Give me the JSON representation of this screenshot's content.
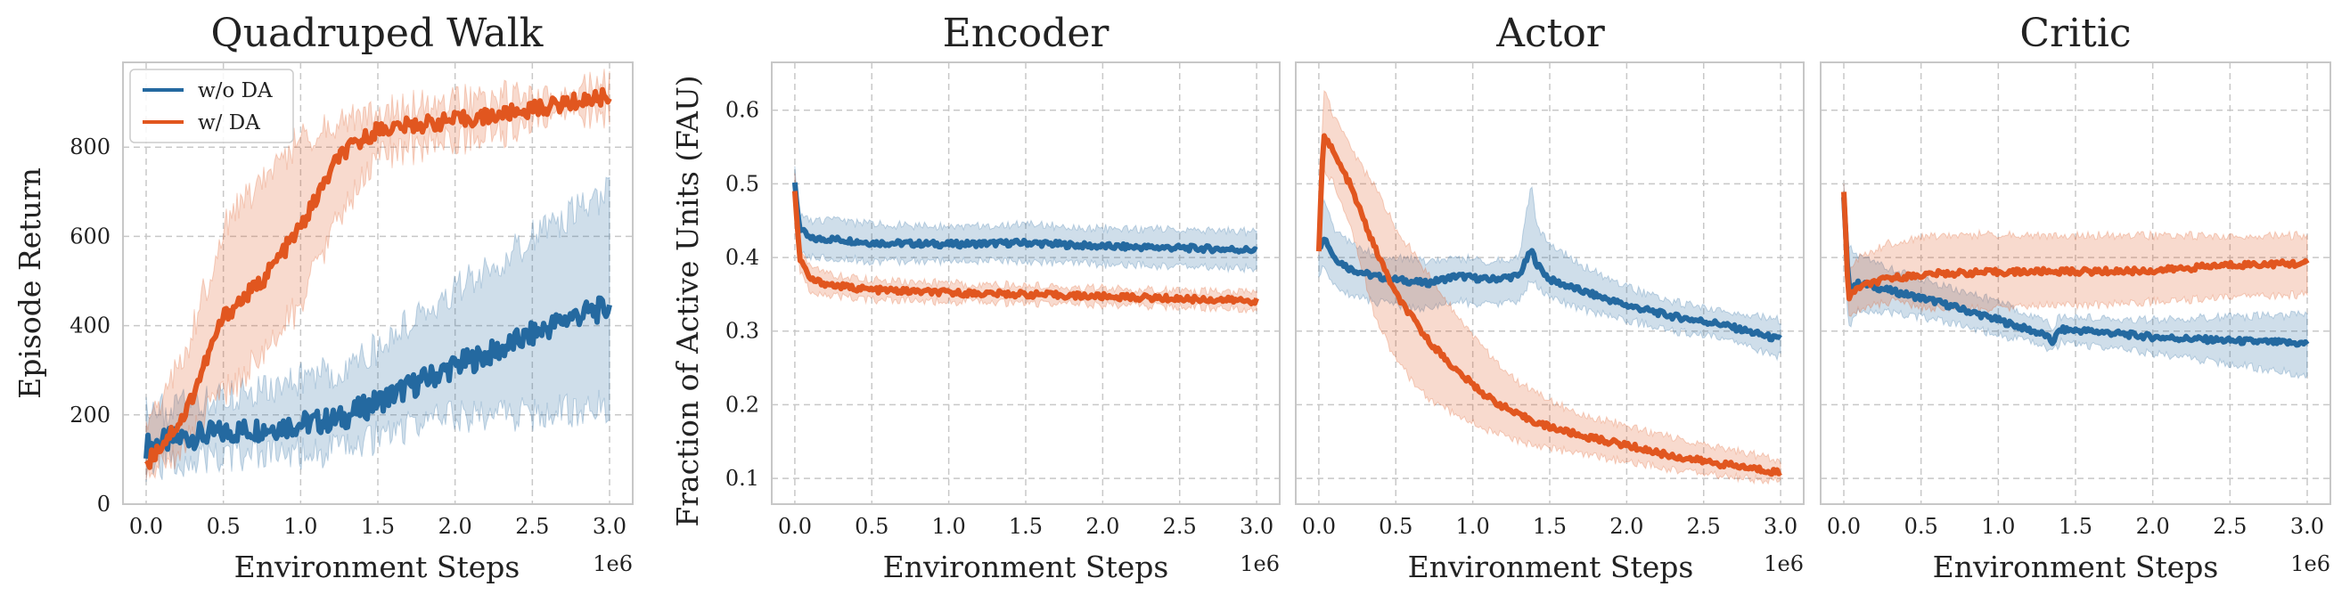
{
  "colors": {
    "without_da": "#2469a0",
    "with_da": "#e1561f"
  },
  "legend": {
    "without_da": "w/o DA",
    "with_da": "w/ DA",
    "placement": "upper-left"
  },
  "shared": {
    "ylabel_right": "Fraction of Active Units (FAU)",
    "xlabel": "Environment Steps",
    "x_offset_label": "1e6",
    "x_ticks": [
      "0.0",
      "0.5",
      "1.0",
      "1.5",
      "2.0",
      "2.5",
      "3.0"
    ],
    "fau_y_ticks": [
      "0.1",
      "0.2",
      "0.3",
      "0.4",
      "0.5",
      "0.6"
    ]
  },
  "chart_data": [
    {
      "type": "line",
      "title": "Quadruped Walk",
      "xlabel": "Environment Steps",
      "ylabel": "Episode Return",
      "x_scale": "1e6",
      "xlim": [
        -0.15,
        3.15
      ],
      "ylim": [
        0,
        990
      ],
      "y_ticks": [
        "0",
        "200",
        "400",
        "600",
        "800"
      ],
      "grid": true,
      "legend_placement": "upper-left",
      "x": [
        0.0,
        0.25,
        0.5,
        0.75,
        1.0,
        1.25,
        1.5,
        1.75,
        2.0,
        2.25,
        2.5,
        2.75,
        3.0
      ],
      "series": [
        {
          "name": "w/o DA",
          "values": [
            130,
            150,
            160,
            170,
            180,
            190,
            230,
            270,
            310,
            340,
            380,
            420,
            440
          ],
          "lower": [
            90,
            100,
            105,
            110,
            115,
            120,
            150,
            180,
            200,
            200,
            200,
            210,
            220
          ],
          "upper": [
            200,
            220,
            240,
            260,
            280,
            300,
            350,
            420,
            480,
            530,
            600,
            650,
            700
          ]
        },
        {
          "name": "w/ DA",
          "values": [
            90,
            200,
            420,
            500,
            620,
            780,
            840,
            850,
            860,
            870,
            885,
            900,
            915
          ],
          "lower": [
            60,
            130,
            250,
            330,
            450,
            640,
            780,
            800,
            820,
            830,
            850,
            870,
            880
          ],
          "upper": [
            180,
            330,
            620,
            730,
            820,
            860,
            880,
            890,
            900,
            910,
            920,
            930,
            940
          ]
        }
      ]
    },
    {
      "type": "line",
      "title": "Encoder",
      "xlabel": "Environment Steps",
      "ylabel": "Fraction of Active Units (FAU)",
      "x_scale": "1e6",
      "xlim": [
        -0.15,
        3.15
      ],
      "ylim": [
        0.065,
        0.665
      ],
      "grid": true,
      "x": [
        0.0,
        0.03,
        0.1,
        0.25,
        0.5,
        1.0,
        1.5,
        2.0,
        2.5,
        3.0
      ],
      "series": [
        {
          "name": "w/o DA",
          "values": [
            0.5,
            0.44,
            0.425,
            0.425,
            0.42,
            0.418,
            0.42,
            0.415,
            0.413,
            0.41
          ],
          "lower": [
            0.47,
            0.41,
            0.4,
            0.4,
            0.395,
            0.395,
            0.395,
            0.39,
            0.388,
            0.385
          ],
          "upper": [
            0.52,
            0.46,
            0.45,
            0.45,
            0.445,
            0.442,
            0.445,
            0.44,
            0.438,
            0.435
          ]
        },
        {
          "name": "w/ DA",
          "values": [
            0.49,
            0.4,
            0.37,
            0.362,
            0.356,
            0.352,
            0.35,
            0.347,
            0.344,
            0.341
          ],
          "lower": [
            0.46,
            0.38,
            0.355,
            0.348,
            0.342,
            0.34,
            0.338,
            0.336,
            0.333,
            0.33
          ],
          "upper": [
            0.51,
            0.42,
            0.385,
            0.376,
            0.37,
            0.365,
            0.362,
            0.358,
            0.355,
            0.352
          ]
        }
      ]
    },
    {
      "type": "line",
      "title": "Actor",
      "xlabel": "Environment Steps",
      "x_scale": "1e6",
      "xlim": [
        -0.15,
        3.15
      ],
      "ylim": [
        0.065,
        0.665
      ],
      "grid": true,
      "x": [
        0.0,
        0.03,
        0.1,
        0.2,
        0.35,
        0.5,
        0.7,
        0.9,
        1.1,
        1.3,
        1.38,
        1.42,
        1.5,
        1.7,
        2.0,
        2.3,
        2.6,
        3.0
      ],
      "series": [
        {
          "name": "w/o DA",
          "values": [
            0.41,
            0.43,
            0.4,
            0.385,
            0.375,
            0.37,
            0.365,
            0.375,
            0.37,
            0.375,
            0.41,
            0.39,
            0.37,
            0.355,
            0.335,
            0.32,
            0.31,
            0.288
          ],
          "lower": [
            0.37,
            0.39,
            0.36,
            0.35,
            0.34,
            0.335,
            0.33,
            0.34,
            0.335,
            0.34,
            0.37,
            0.36,
            0.345,
            0.33,
            0.315,
            0.3,
            0.29,
            0.265
          ],
          "upper": [
            0.45,
            0.48,
            0.44,
            0.42,
            0.405,
            0.4,
            0.395,
            0.4,
            0.395,
            0.4,
            0.5,
            0.44,
            0.42,
            0.39,
            0.36,
            0.34,
            0.33,
            0.315
          ]
        },
        {
          "name": "w/ DA",
          "values": [
            0.41,
            0.57,
            0.54,
            0.5,
            0.42,
            0.35,
            0.29,
            0.245,
            0.21,
            0.185,
            0.18,
            0.175,
            0.17,
            0.158,
            0.145,
            0.13,
            0.12,
            0.108
          ],
          "lower": [
            0.4,
            0.52,
            0.5,
            0.45,
            0.33,
            0.26,
            0.21,
            0.185,
            0.165,
            0.15,
            0.147,
            0.145,
            0.142,
            0.132,
            0.122,
            0.112,
            0.104,
            0.095
          ],
          "upper": [
            0.43,
            0.63,
            0.59,
            0.55,
            0.5,
            0.44,
            0.38,
            0.32,
            0.27,
            0.23,
            0.22,
            0.215,
            0.205,
            0.188,
            0.172,
            0.155,
            0.142,
            0.125
          ]
        }
      ]
    },
    {
      "type": "line",
      "title": "Critic",
      "xlabel": "Environment Steps",
      "x_scale": "1e6",
      "xlim": [
        -0.15,
        3.15
      ],
      "ylim": [
        0.065,
        0.665
      ],
      "grid": true,
      "x": [
        0.0,
        0.03,
        0.1,
        0.3,
        0.6,
        1.0,
        1.3,
        1.35,
        1.4,
        1.6,
        2.0,
        2.5,
        3.0
      ],
      "series": [
        {
          "name": "w/o DA",
          "values": [
            0.48,
            0.36,
            0.365,
            0.355,
            0.34,
            0.315,
            0.295,
            0.285,
            0.302,
            0.3,
            0.292,
            0.287,
            0.283
          ],
          "lower": [
            0.45,
            0.3,
            0.33,
            0.325,
            0.315,
            0.295,
            0.28,
            0.27,
            0.285,
            0.28,
            0.27,
            0.255,
            0.24
          ],
          "upper": [
            0.5,
            0.42,
            0.4,
            0.385,
            0.365,
            0.34,
            0.315,
            0.305,
            0.32,
            0.318,
            0.315,
            0.32,
            0.322
          ]
        },
        {
          "name": "w/ DA",
          "values": [
            0.49,
            0.345,
            0.36,
            0.372,
            0.378,
            0.38,
            0.381,
            0.381,
            0.381,
            0.381,
            0.382,
            0.39,
            0.392
          ],
          "lower": [
            0.47,
            0.32,
            0.33,
            0.34,
            0.33,
            0.33,
            0.335,
            0.335,
            0.335,
            0.335,
            0.34,
            0.345,
            0.35
          ],
          "upper": [
            0.5,
            0.38,
            0.4,
            0.42,
            0.43,
            0.432,
            0.43,
            0.43,
            0.43,
            0.43,
            0.43,
            0.43,
            0.43
          ]
        }
      ]
    }
  ]
}
